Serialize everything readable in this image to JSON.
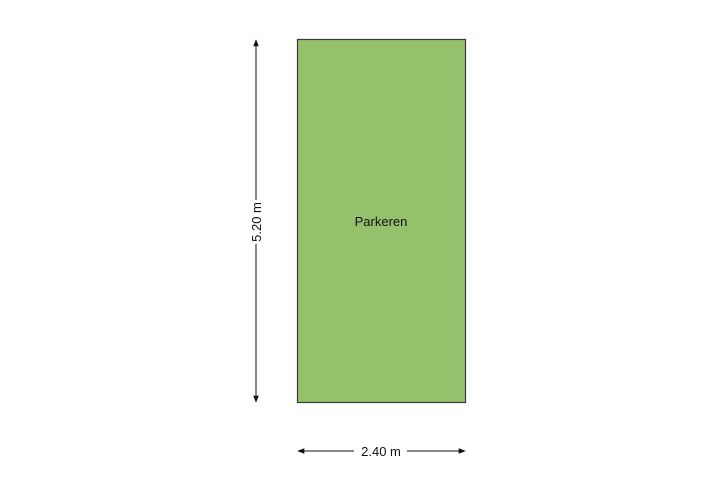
{
  "room": {
    "name": "Parkeren",
    "fill_color": "#95c16c",
    "border_color": "#3a3a3a"
  },
  "dimensions": {
    "height_label": "5.20 m",
    "width_label": "2.40 m"
  }
}
